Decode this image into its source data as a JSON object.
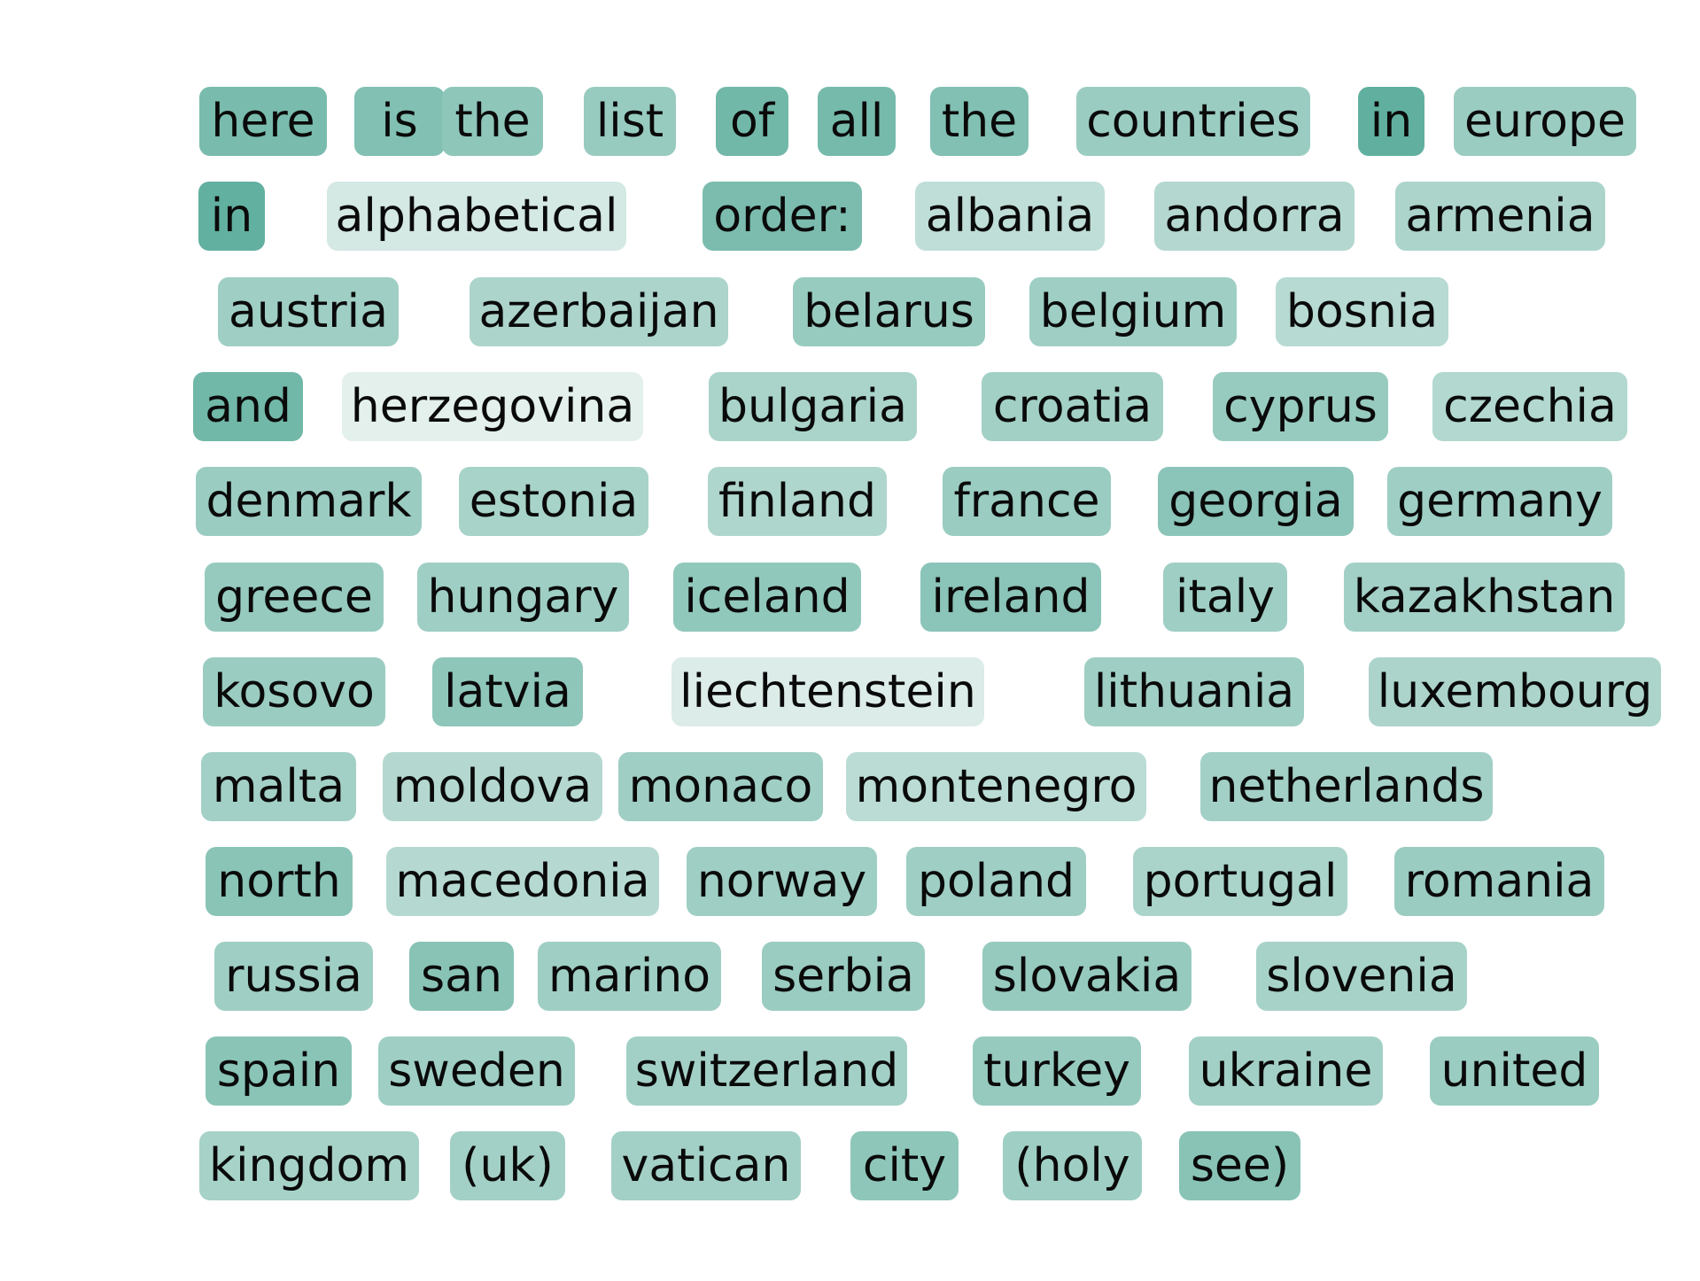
{
  "tokens": [
    {
      "text": "here",
      "w": 0.73
    },
    {
      "text": "is",
      "w": 0.68
    },
    {
      "text": "the",
      "w": 0.6
    },
    {
      "text": "list",
      "w": 0.54
    },
    {
      "text": "of",
      "w": 0.77
    },
    {
      "text": "all",
      "w": 0.75
    },
    {
      "text": "the",
      "w": 0.68
    },
    {
      "text": "countries",
      "w": 0.52
    },
    {
      "text": "in",
      "w": 0.88
    },
    {
      "text": "europe",
      "w": 0.52
    },
    {
      "text": "in",
      "w": 0.87
    },
    {
      "text": "alphabetical",
      "w": 0.17
    },
    {
      "text": "order:",
      "w": 0.72
    },
    {
      "text": "albania",
      "w": 0.3
    },
    {
      "text": "andorra",
      "w": 0.37
    },
    {
      "text": "armenia",
      "w": 0.42
    },
    {
      "text": "austria",
      "w": 0.5
    },
    {
      "text": "azerbaijan",
      "w": 0.42
    },
    {
      "text": "belarus",
      "w": 0.54
    },
    {
      "text": "belgium",
      "w": 0.5
    },
    {
      "text": "bosnia",
      "w": 0.35
    },
    {
      "text": "and",
      "w": 0.78
    },
    {
      "text": "herzegovina",
      "w": 0.08
    },
    {
      "text": "bulgaria",
      "w": 0.43
    },
    {
      "text": "croatia",
      "w": 0.48
    },
    {
      "text": "cyprus",
      "w": 0.54
    },
    {
      "text": "czechia",
      "w": 0.38
    },
    {
      "text": "denmark",
      "w": 0.52
    },
    {
      "text": "estonia",
      "w": 0.44
    },
    {
      "text": "finland",
      "w": 0.4
    },
    {
      "text": "france",
      "w": 0.53
    },
    {
      "text": "georgia",
      "w": 0.62
    },
    {
      "text": "germany",
      "w": 0.5
    },
    {
      "text": "greece",
      "w": 0.55
    },
    {
      "text": "hungary",
      "w": 0.5
    },
    {
      "text": "iceland",
      "w": 0.58
    },
    {
      "text": "ireland",
      "w": 0.62
    },
    {
      "text": "italy",
      "w": 0.5
    },
    {
      "text": "kazakhstan",
      "w": 0.47
    },
    {
      "text": "kosovo",
      "w": 0.52
    },
    {
      "text": "latvia",
      "w": 0.6
    },
    {
      "text": "liechtenstein",
      "w": 0.12
    },
    {
      "text": "lithuania",
      "w": 0.5
    },
    {
      "text": "luxembourg",
      "w": 0.42
    },
    {
      "text": "malta",
      "w": 0.47
    },
    {
      "text": "moldova",
      "w": 0.37
    },
    {
      "text": "monaco",
      "w": 0.5
    },
    {
      "text": "montenegro",
      "w": 0.33
    },
    {
      "text": "netherlands",
      "w": 0.47
    },
    {
      "text": "north",
      "w": 0.63
    },
    {
      "text": "macedonia",
      "w": 0.36
    },
    {
      "text": "norway",
      "w": 0.5
    },
    {
      "text": "poland",
      "w": 0.5
    },
    {
      "text": "portugal",
      "w": 0.43
    },
    {
      "text": "romania",
      "w": 0.52
    },
    {
      "text": "russia",
      "w": 0.5
    },
    {
      "text": "san",
      "w": 0.64
    },
    {
      "text": "marino",
      "w": 0.5
    },
    {
      "text": "serbia",
      "w": 0.53
    },
    {
      "text": "slovakia",
      "w": 0.55
    },
    {
      "text": "slovenia",
      "w": 0.45
    },
    {
      "text": "spain",
      "w": 0.63
    },
    {
      "text": "sweden",
      "w": 0.5
    },
    {
      "text": "switzerland",
      "w": 0.47
    },
    {
      "text": "turkey",
      "w": 0.55
    },
    {
      "text": "ukraine",
      "w": 0.47
    },
    {
      "text": "united",
      "w": 0.53
    },
    {
      "text": "kingdom",
      "w": 0.45
    },
    {
      "text": "(uk)",
      "w": 0.47
    },
    {
      "text": "vatican",
      "w": 0.47
    },
    {
      "text": "city",
      "w": 0.6
    },
    {
      "text": "(holy",
      "w": 0.5
    },
    {
      "text": "see)",
      "w": 0.64
    }
  ],
  "colors": {
    "low": "#f0f6f4",
    "high": "#4da693",
    "text": "#0a0a0a"
  }
}
